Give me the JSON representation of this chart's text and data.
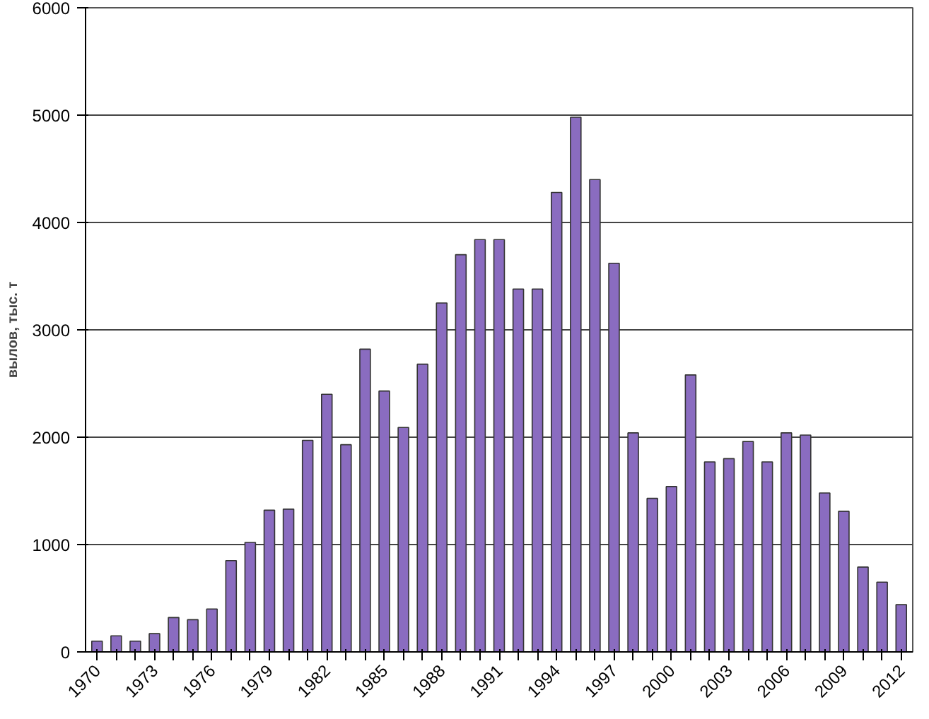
{
  "chart_data": {
    "type": "bar",
    "ylabel": "вылов, тыс. т",
    "categories": [
      "1970",
      null,
      null,
      "1973",
      null,
      null,
      "1976",
      null,
      null,
      "1979",
      null,
      null,
      "1982",
      null,
      null,
      "1985",
      null,
      null,
      "1988",
      null,
      null,
      "1991",
      null,
      null,
      "1994",
      null,
      null,
      "1997",
      null,
      null,
      "2000",
      null,
      null,
      "2003",
      null,
      null,
      "2006",
      null,
      null,
      "2009",
      null,
      null,
      "2012"
    ],
    "values": [
      100,
      150,
      100,
      170,
      320,
      300,
      400,
      850,
      1020,
      1320,
      1330,
      1970,
      2400,
      1930,
      2820,
      2430,
      2090,
      2680,
      3250,
      3700,
      3840,
      3840,
      3380,
      3380,
      4280,
      4980,
      4400,
      3620,
      2040,
      1430,
      1540,
      2580,
      1770,
      1800,
      1960,
      1770,
      2040,
      2020,
      1480,
      1310,
      790,
      650,
      440
    ],
    "color": "#8a6cc0",
    "ylim": [
      0,
      6000
    ],
    "yticks": [
      0,
      1000,
      2000,
      3000,
      4000,
      5000,
      6000
    ],
    "grid": "y"
  }
}
